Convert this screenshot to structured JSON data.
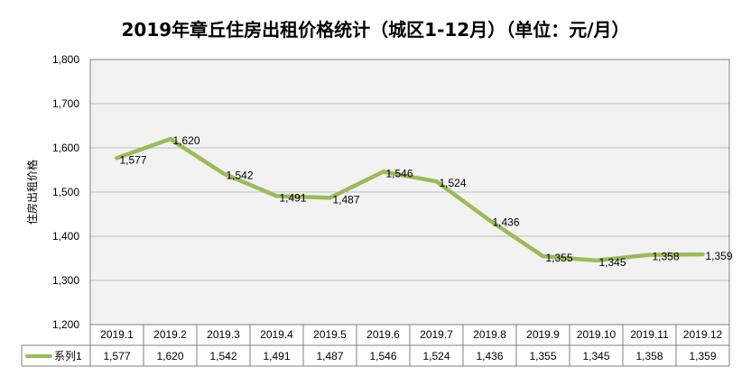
{
  "chart_data": {
    "type": "line",
    "title": "2019年章丘住房出租价格统计（城区1-12月）（单位：元/月）",
    "xlabel": "",
    "ylabel": "住房出租价格",
    "categories": [
      "2019.1",
      "2019.2",
      "2019.3",
      "2019.4",
      "2019.5",
      "2019.6",
      "2019.7",
      "2019.8",
      "2019.9",
      "2019.10",
      "2019.11",
      "2019.12"
    ],
    "series": [
      {
        "name": "系列1",
        "values": [
          1577,
          1620,
          1542,
          1491,
          1487,
          1546,
          1524,
          1436,
          1355,
          1345,
          1358,
          1359
        ],
        "labels": [
          "1,577",
          "1,620",
          "1,542",
          "1,491",
          "1,487",
          "1,546",
          "1,524",
          "1,436",
          "1,355",
          "1,345",
          "1,358",
          "1,359"
        ]
      }
    ],
    "ylim": [
      1200,
      1800
    ],
    "yticks": [
      1200,
      1300,
      1400,
      1500,
      1600,
      1700,
      1800
    ],
    "ytick_labels": [
      "1,200",
      "1,300",
      "1,400",
      "1,500",
      "1,600",
      "1,700",
      "1,800"
    ],
    "grid": true,
    "data_table": true,
    "colors": {
      "line": "#9BBB59",
      "plot_bg": "#F2F2F2",
      "grid": "#BFBFBF",
      "border": "#808080"
    }
  }
}
